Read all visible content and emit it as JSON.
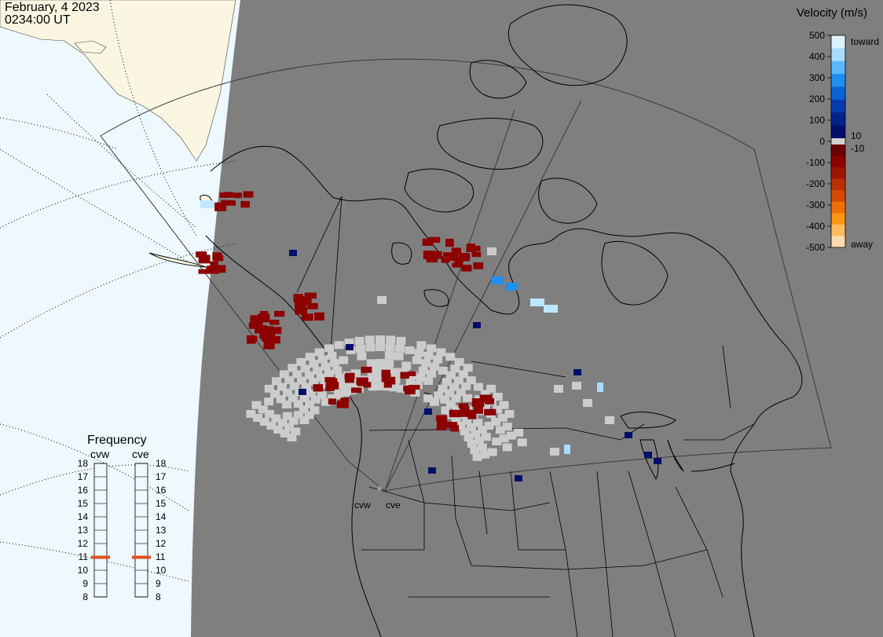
{
  "header": {
    "date": "February, 4 2023",
    "time": "0234:00 UT"
  },
  "velocity_scale": {
    "title": "Velocity (m/s)",
    "toward_label": "toward",
    "away_label": "away",
    "ticks": [
      "500",
      "400",
      "300",
      "200",
      "100",
      "0",
      "-100",
      "-200",
      "-300",
      "-400",
      "-500"
    ],
    "inner_ticks": [
      "10",
      "-10"
    ],
    "colors": [
      "#dff2ff",
      "#a8dcff",
      "#5ab8ff",
      "#1f8ff0",
      "#0a62d6",
      "#063cb0",
      "#04238a",
      "#000f6a",
      "#6b0000",
      "#8c0000",
      "#a01500",
      "#bb2e00",
      "#d44a00",
      "#ee7000",
      "#ff9616",
      "#ffbc5e",
      "#ffdab0"
    ]
  },
  "frequency_panel": {
    "title": "Frequency",
    "radars": [
      {
        "code": "cvw",
        "frequency_mhz": 11
      },
      {
        "code": "cve",
        "frequency_mhz": 11
      }
    ],
    "scale_labels": [
      "18",
      "17",
      "16",
      "15",
      "14",
      "13",
      "12",
      "11",
      "10",
      "9",
      "8"
    ]
  },
  "radar_labels": [
    "cvw",
    "cve"
  ],
  "colors": {
    "ocean": "#eef8ff",
    "land_day": "#fbf6e2",
    "night": "#7f7f7f",
    "ground_scatter": "#cccccc",
    "frequency_marker": "#e0501e"
  }
}
